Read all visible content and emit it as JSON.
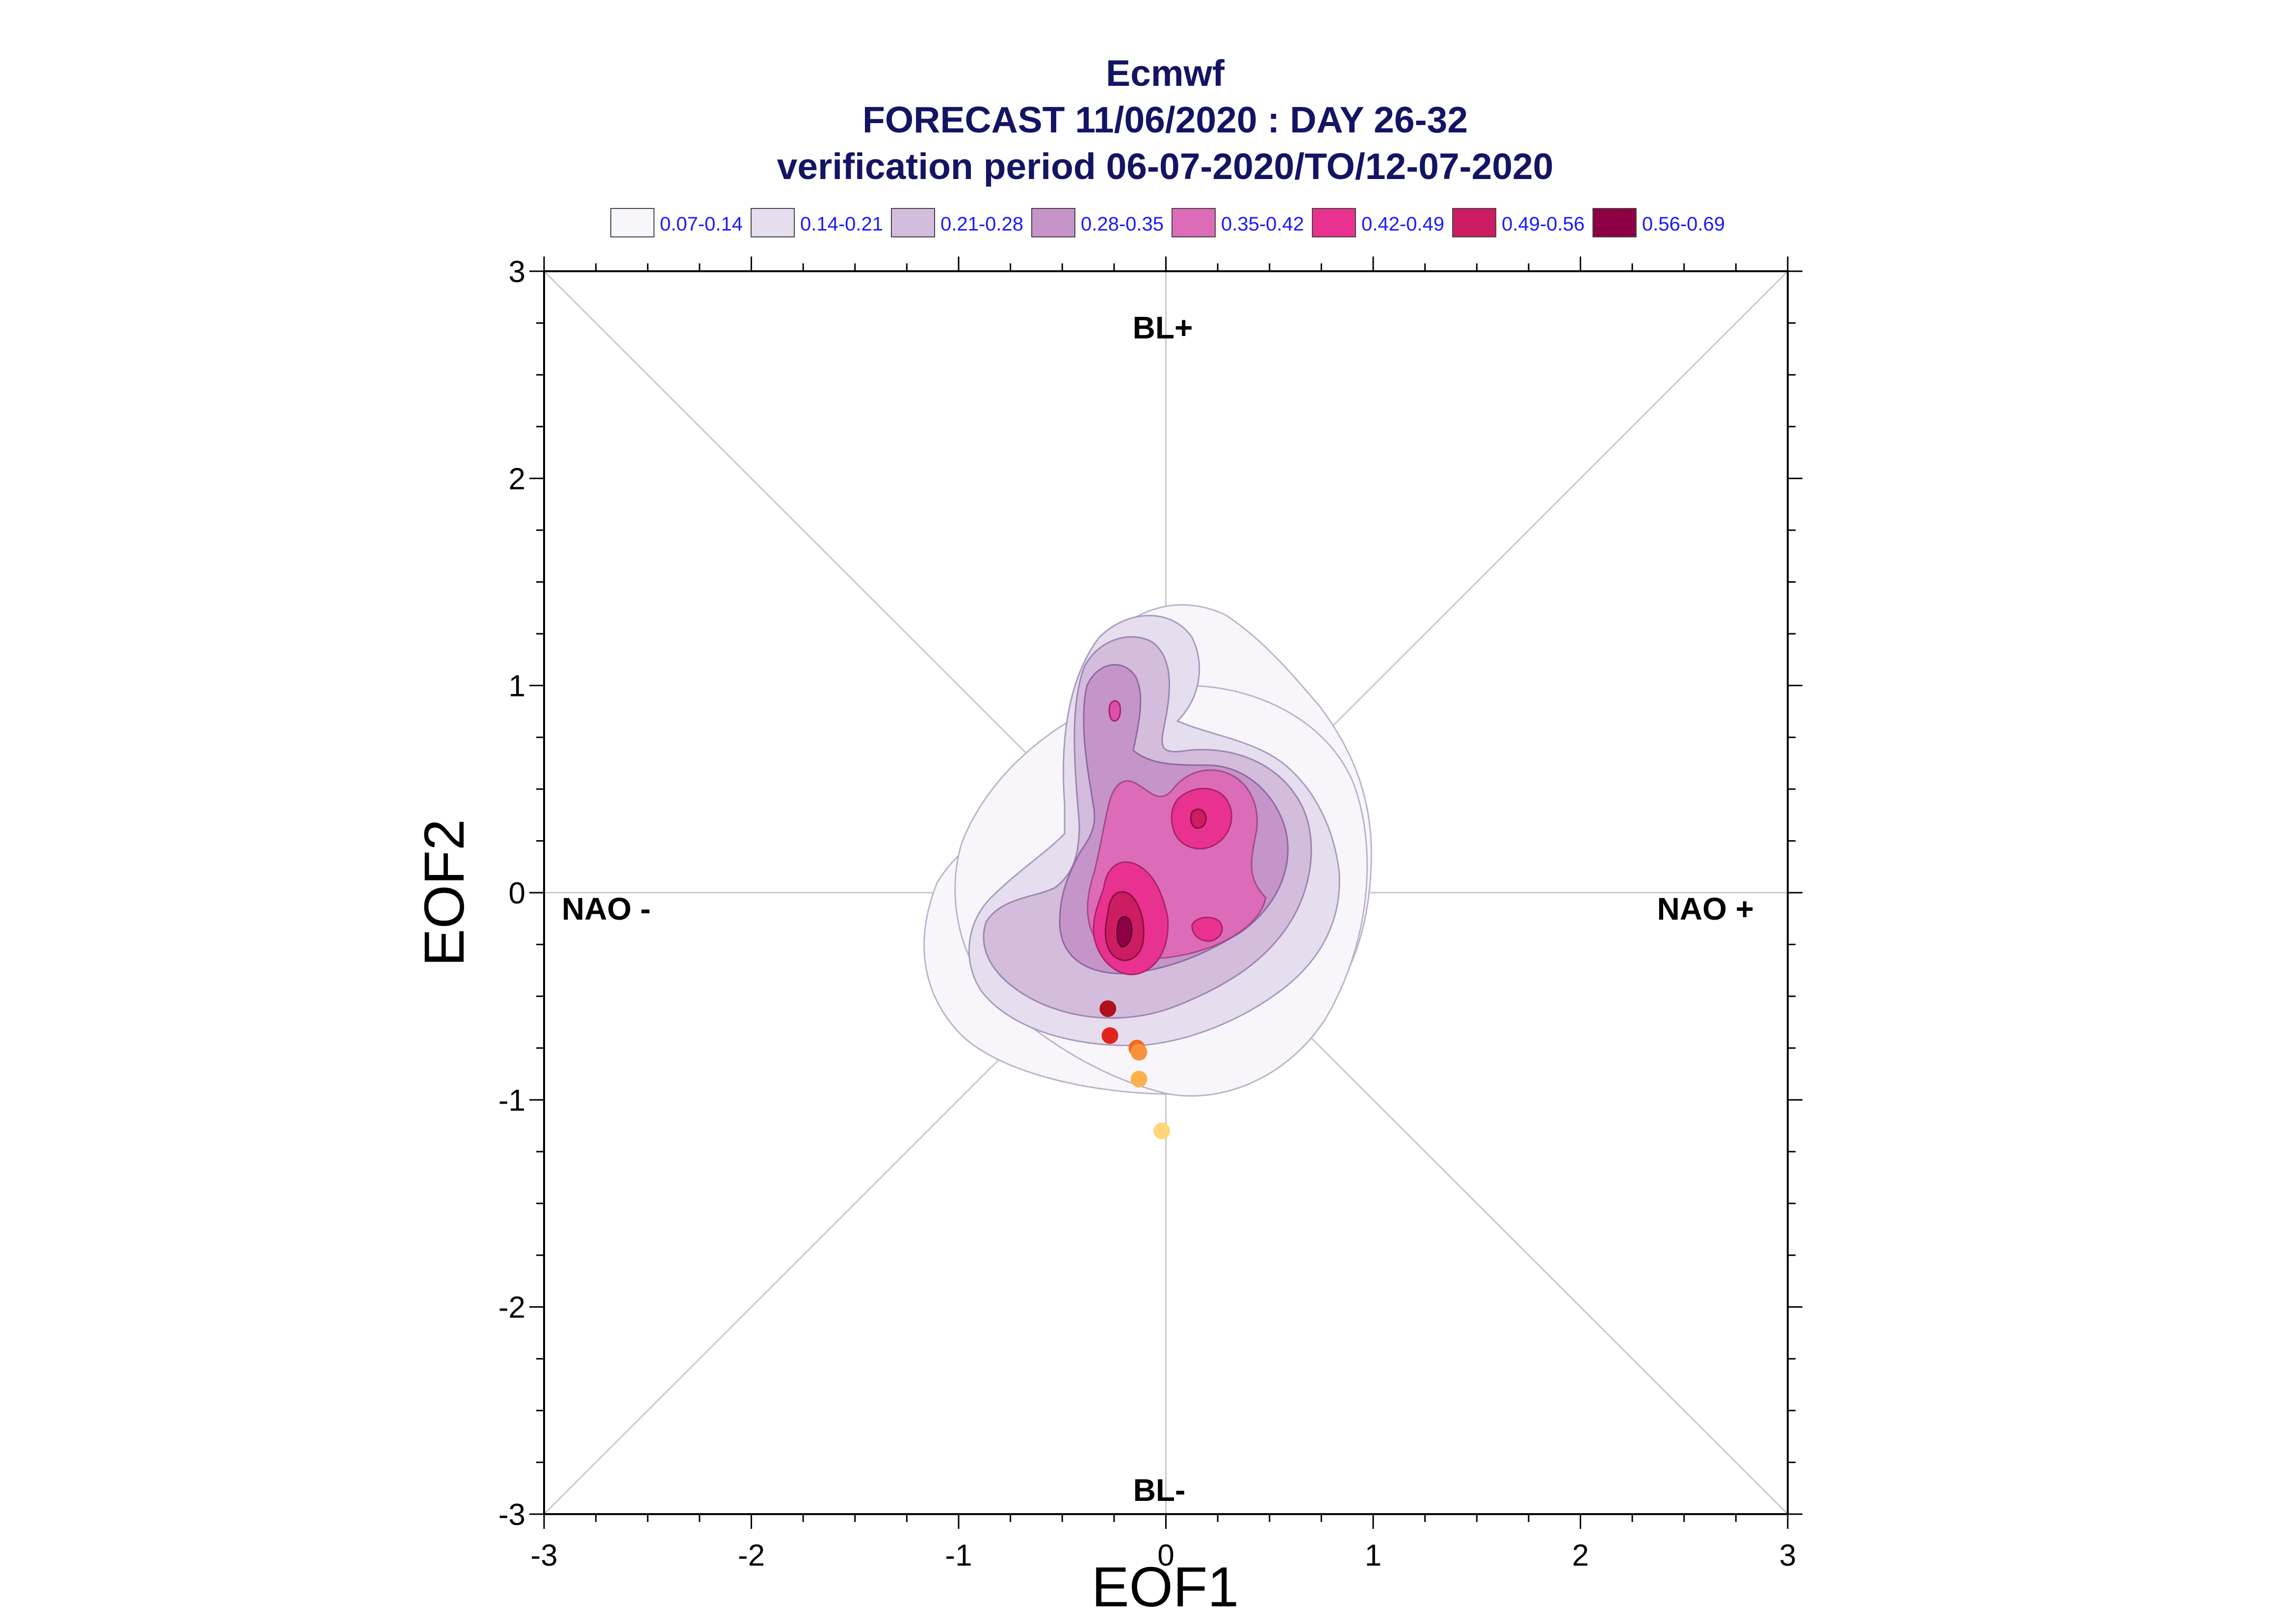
{
  "chart_data": {
    "type": "scatter",
    "title_lines": [
      "Ecmwf",
      "FORECAST 11/06/2020 : DAY 26-32",
      "verification period 06-07-2020/TO/12-07-2020"
    ],
    "xlabel": "EOF1",
    "ylabel": "EOF2",
    "xlim": [
      -3,
      3
    ],
    "ylim": [
      -3,
      3
    ],
    "x_ticks": [
      "-3",
      "-2",
      "-1",
      "0",
      "1",
      "2",
      "3"
    ],
    "y_ticks": [
      "-3",
      "-2",
      "-1",
      "0",
      "1",
      "2",
      "3"
    ],
    "regime_labels": {
      "top": "BL+",
      "bottom": "BL-",
      "left": "NAO -",
      "right": "NAO +"
    },
    "density_levels": [
      {
        "label": "0.07-0.14",
        "color": "#f8f6fb"
      },
      {
        "label": "0.14-0.21",
        "color": "#e6ddef"
      },
      {
        "label": "0.21-0.28",
        "color": "#d3bcdc"
      },
      {
        "label": "0.28-0.35",
        "color": "#c594c9"
      },
      {
        "label": "0.35-0.42",
        "color": "#dd6cb8"
      },
      {
        "label": "0.42-0.49",
        "color": "#e9328f"
      },
      {
        "label": "0.49-0.56",
        "color": "#cc1c62"
      },
      {
        "label": "0.56-0.69",
        "color": "#8e0045"
      }
    ],
    "points": [
      {
        "x": -0.28,
        "y": -0.56,
        "color": "#b0101c"
      },
      {
        "x": -0.27,
        "y": -0.69,
        "color": "#e0241c"
      },
      {
        "x": -0.14,
        "y": -0.75,
        "color": "#f26a22"
      },
      {
        "x": -0.13,
        "y": -0.77,
        "color": "#f8923a"
      },
      {
        "x": -0.13,
        "y": -0.9,
        "color": "#fdb04e"
      },
      {
        "x": -0.02,
        "y": -1.15,
        "color": "#fed678"
      }
    ]
  }
}
